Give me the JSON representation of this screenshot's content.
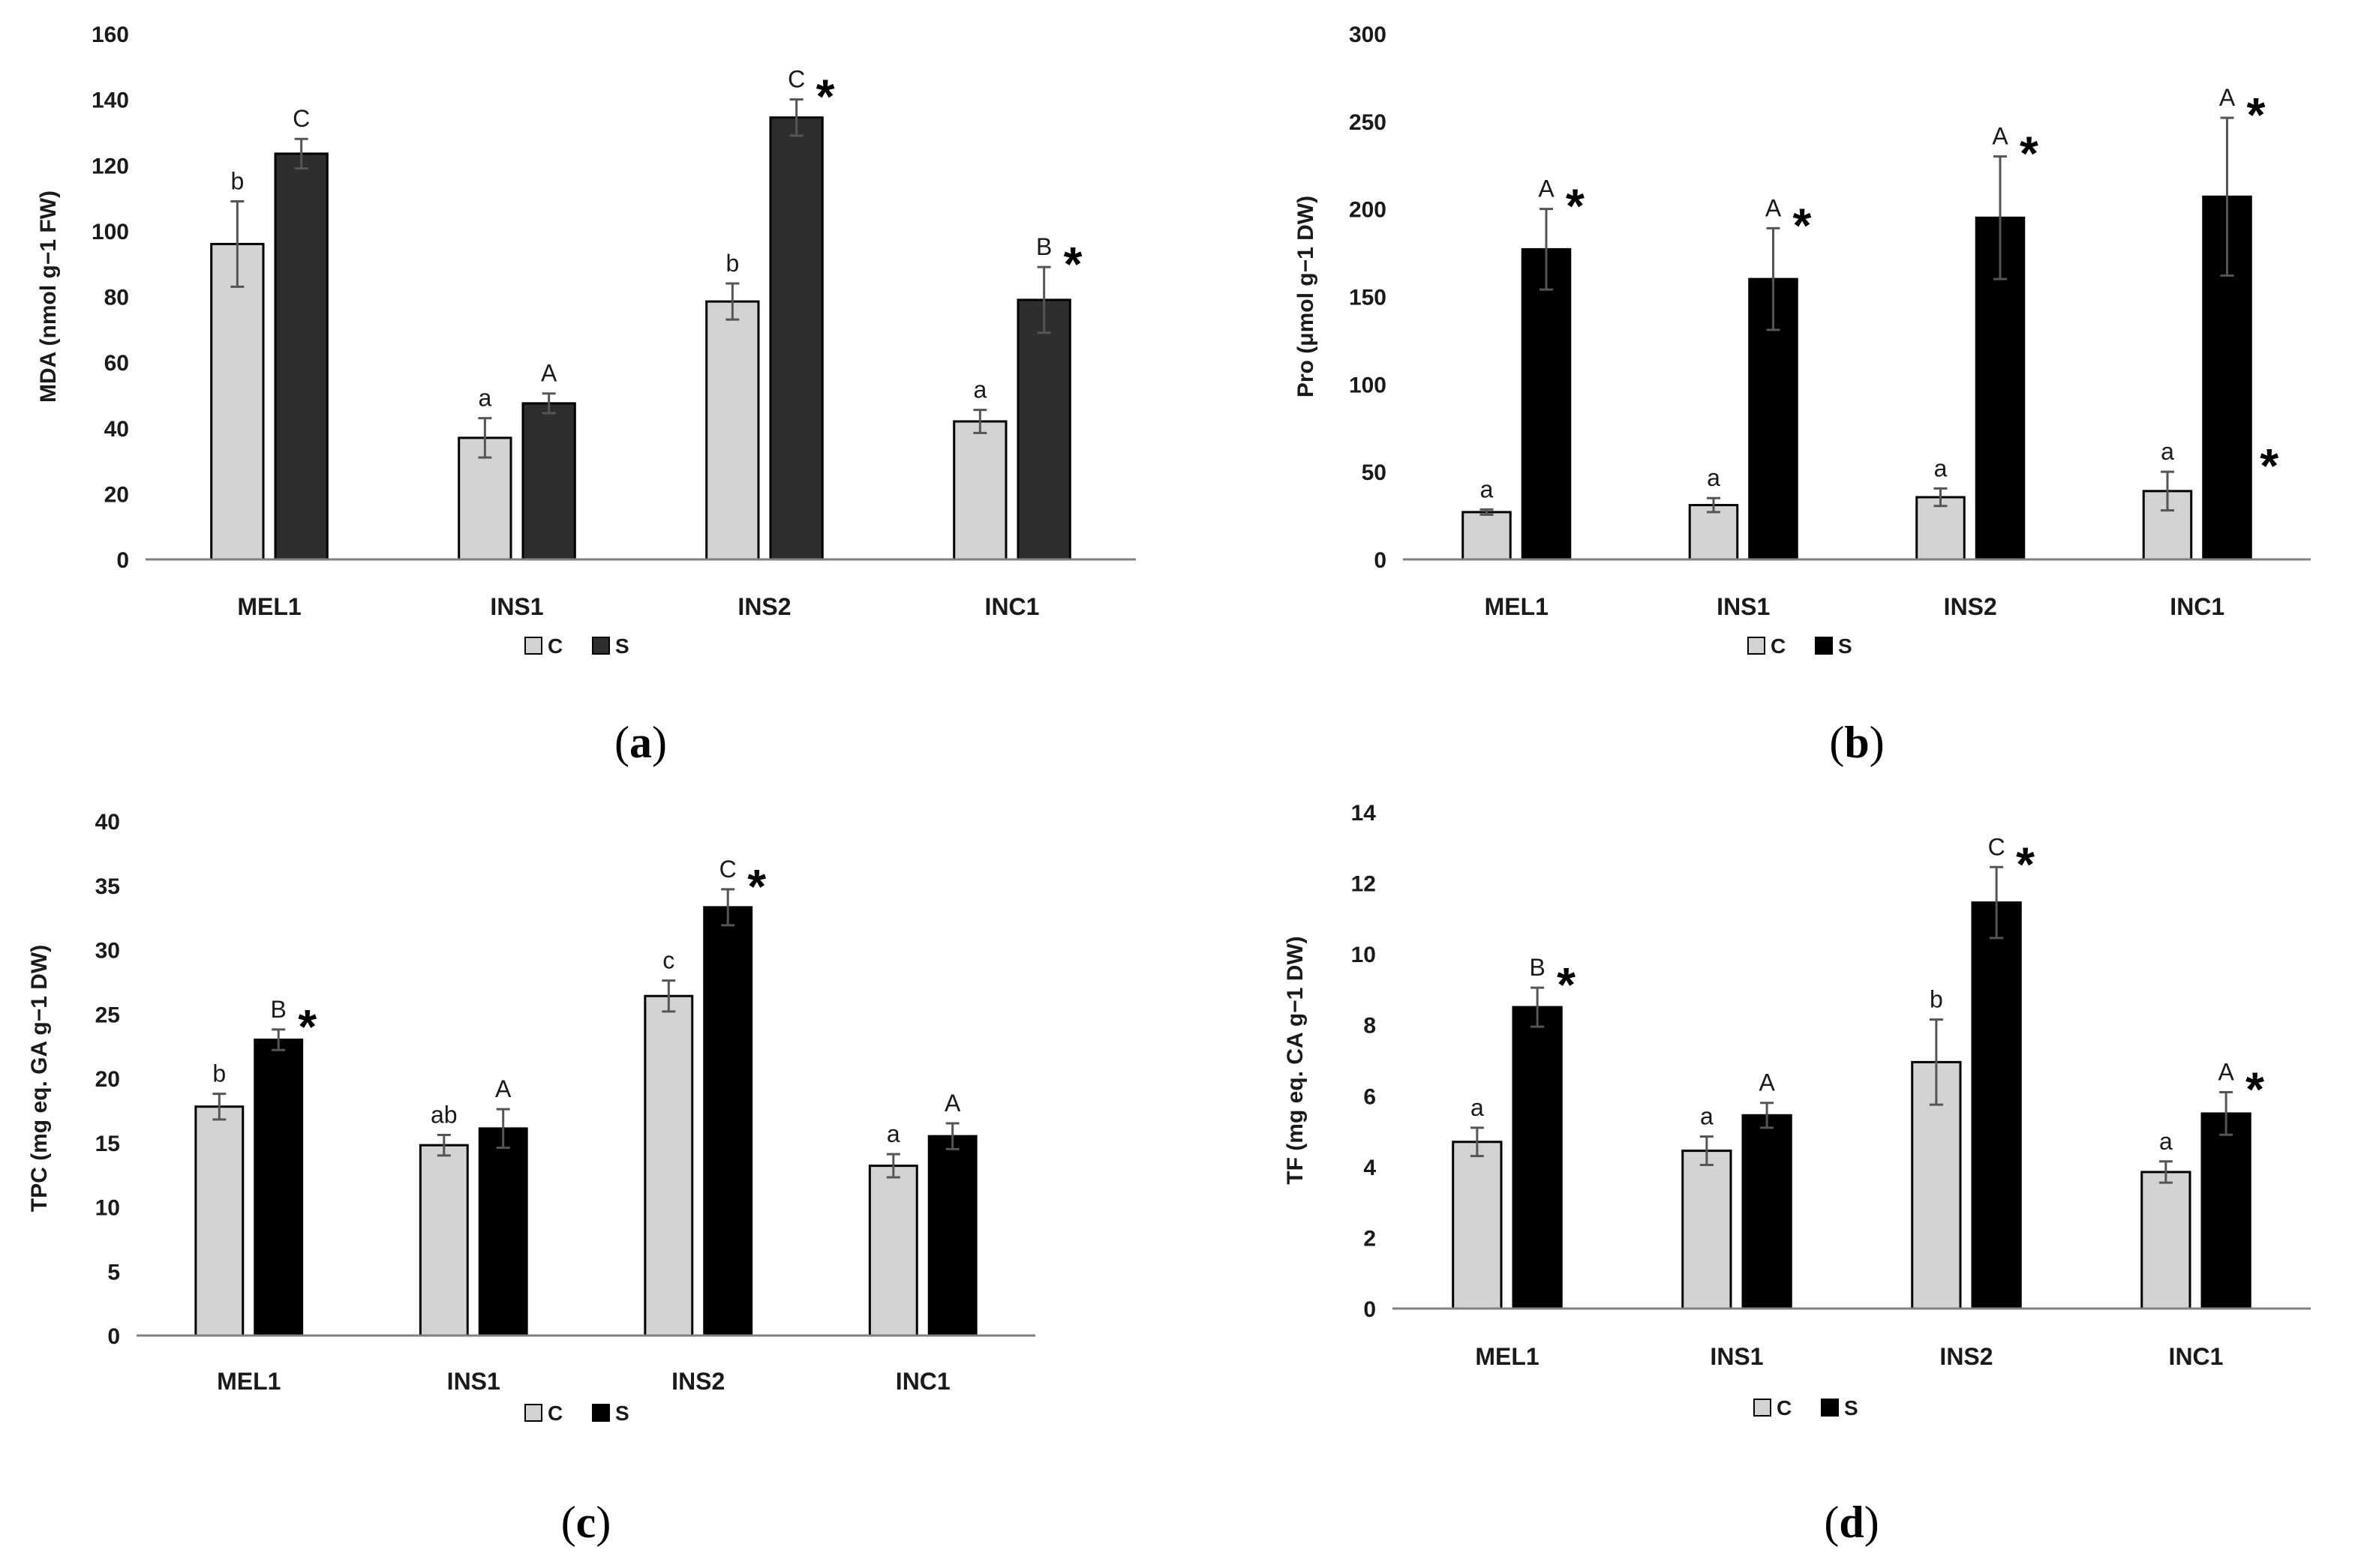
{
  "legend": {
    "c_label": "C",
    "s_label": "S"
  },
  "colors": {
    "c": "#d3d3d3",
    "s_a": "#2e2e2e",
    "s_bcd": "#000000",
    "axis": "#808080",
    "err": "#555555"
  },
  "chart_data": [
    {
      "type": "bar",
      "panel_label": "a",
      "ylabel": "MDA (nmol g−1 FW)",
      "categories": [
        "MEL1",
        "INS1",
        "INS2",
        "INC1"
      ],
      "ylim": [
        0,
        160
      ],
      "yticks": [
        0,
        20,
        40,
        60,
        80,
        100,
        120,
        140,
        160
      ],
      "series": [
        {
          "name": "C",
          "values": [
            96,
            37,
            78.5,
            42
          ],
          "errors": [
            13,
            6,
            5.5,
            3.5
          ],
          "letters": [
            "b",
            "a",
            "b",
            "a"
          ],
          "stars": [
            false,
            false,
            false,
            false
          ]
        },
        {
          "name": "S",
          "values": [
            123.5,
            47.5,
            134.5,
            79
          ],
          "errors": [
            4.5,
            3,
            5.5,
            10
          ],
          "letters": [
            "C",
            "A",
            "C",
            "B"
          ],
          "stars": [
            false,
            false,
            true,
            true
          ]
        }
      ]
    },
    {
      "type": "bar",
      "panel_label": "b",
      "ylabel": "Pro (μmol g−1 DW)",
      "categories": [
        "MEL1",
        "INS1",
        "INS2",
        "INC1"
      ],
      "ylim": [
        0,
        300
      ],
      "yticks": [
        0,
        50,
        100,
        150,
        200,
        250,
        300
      ],
      "series": [
        {
          "name": "C",
          "values": [
            27,
            31,
            35.5,
            39
          ],
          "errors": [
            1.5,
            4,
            5,
            11
          ],
          "letters": [
            "a",
            "a",
            "a",
            "a"
          ],
          "stars": [
            false,
            false,
            false,
            true
          ]
        },
        {
          "name": "S",
          "values": [
            177,
            160,
            195,
            207
          ],
          "errors": [
            23,
            29,
            35,
            45
          ],
          "letters": [
            "A",
            "A",
            "A",
            "A"
          ],
          "stars": [
            true,
            true,
            true,
            true
          ]
        }
      ]
    },
    {
      "type": "bar",
      "panel_label": "c",
      "ylabel": "TPC (mg eq. GA g−1 DW)",
      "categories": [
        "MEL1",
        "INS1",
        "INS2",
        "INC1"
      ],
      "ylim": [
        0,
        40
      ],
      "yticks": [
        0,
        5,
        10,
        15,
        20,
        25,
        30,
        35,
        40
      ],
      "series": [
        {
          "name": "C",
          "values": [
            17.8,
            14.8,
            26.4,
            13.2
          ],
          "errors": [
            1.0,
            0.8,
            1.2,
            0.9
          ],
          "letters": [
            "b",
            "ab",
            "c",
            "a"
          ],
          "stars": [
            false,
            false,
            false,
            false
          ]
        },
        {
          "name": "S",
          "values": [
            23,
            16.1,
            33.3,
            15.5
          ],
          "errors": [
            0.8,
            1.5,
            1.4,
            1.0
          ],
          "letters": [
            "B",
            "A",
            "C",
            "A"
          ],
          "stars": [
            true,
            false,
            true,
            false
          ]
        }
      ]
    },
    {
      "type": "bar",
      "panel_label": "d",
      "ylabel": "TF (mg eq. CA g−1 DW)",
      "categories": [
        "MEL1",
        "INS1",
        "INS2",
        "INC1"
      ],
      "ylim": [
        0,
        14
      ],
      "yticks": [
        0,
        2,
        4,
        6,
        8,
        10,
        12,
        14
      ],
      "series": [
        {
          "name": "C",
          "values": [
            4.7,
            4.45,
            6.95,
            3.85
          ],
          "errors": [
            0.4,
            0.4,
            1.2,
            0.3
          ],
          "letters": [
            "a",
            "a",
            "b",
            "a"
          ],
          "stars": [
            false,
            false,
            false,
            false
          ]
        },
        {
          "name": "S",
          "values": [
            8.5,
            5.45,
            11.45,
            5.5
          ],
          "errors": [
            0.55,
            0.35,
            1.0,
            0.6
          ],
          "letters": [
            "B",
            "A",
            "C",
            "A"
          ],
          "stars": [
            true,
            false,
            true,
            true
          ]
        }
      ]
    }
  ]
}
